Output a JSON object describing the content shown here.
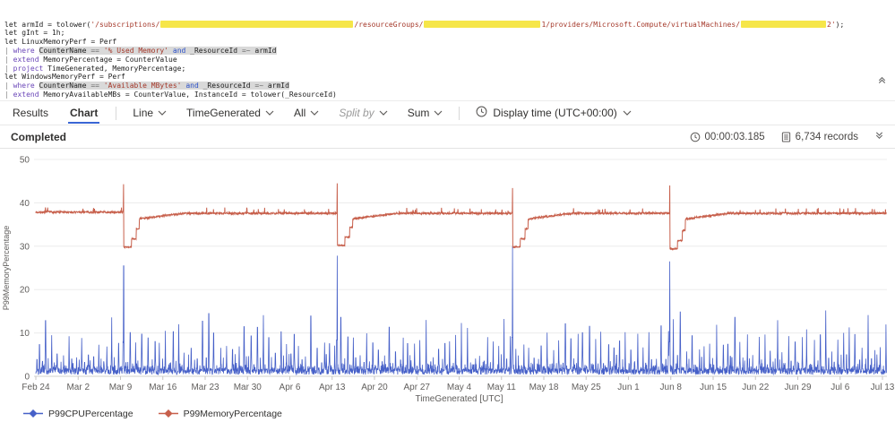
{
  "query_editor": {
    "lines": [
      [
        {
          "t": "let armId = tolower(",
          "c": "p"
        },
        {
          "t": "'/subscriptions/",
          "c": "s"
        },
        {
          "r": 215
        },
        {
          "t": "/resourceGroups/",
          "c": "s"
        },
        {
          "r": 130
        },
        {
          "t": "1/providers/Microsoft.Compute/virtualMachines/",
          "c": "s"
        },
        {
          "r": 95
        },
        {
          "t": "2'",
          "c": "s"
        },
        {
          "t": ");",
          "c": "p"
        }
      ],
      [
        {
          "t": "let gInt = 1h;",
          "c": "p"
        }
      ],
      [
        {
          "t": "let LinuxMemoryPerf = Perf",
          "c": "p"
        }
      ],
      [
        {
          "t": "| ",
          "c": "pi"
        },
        {
          "t": "where ",
          "c": "k"
        },
        {
          "t": "CounterName ",
          "c": "p",
          "h": 1
        },
        {
          "t": "== ",
          "c": "o",
          "h": 1
        },
        {
          "t": "'% Used Memory'",
          "c": "s",
          "h": 1
        },
        {
          "t": " ",
          "c": "p",
          "h": 1
        },
        {
          "t": "and",
          "c": "b",
          "h": 1
        },
        {
          "t": " _ResourceId ",
          "c": "p",
          "h": 1
        },
        {
          "t": "=~ ",
          "c": "o",
          "h": 1
        },
        {
          "t": "armId",
          "c": "p",
          "h": 1
        }
      ],
      [
        {
          "t": "| ",
          "c": "pi"
        },
        {
          "t": "extend ",
          "c": "k"
        },
        {
          "t": "MemoryPercentage = CounterValue",
          "c": "p"
        }
      ],
      [
        {
          "t": "| ",
          "c": "pi"
        },
        {
          "t": "project ",
          "c": "k"
        },
        {
          "t": "TimeGenerated, MemoryPercentage;",
          "c": "p"
        }
      ],
      [
        {
          "t": "let WindowsMemoryPerf = Perf",
          "c": "p"
        }
      ],
      [
        {
          "t": "| ",
          "c": "pi"
        },
        {
          "t": "where ",
          "c": "k"
        },
        {
          "t": "CounterName ",
          "c": "p",
          "h": 1
        },
        {
          "t": "== ",
          "c": "o",
          "h": 1
        },
        {
          "t": "'Available MBytes'",
          "c": "s",
          "h": 1
        },
        {
          "t": " ",
          "c": "p",
          "h": 1
        },
        {
          "t": "and",
          "c": "b",
          "h": 1
        },
        {
          "t": " _ResourceId ",
          "c": "p",
          "h": 1
        },
        {
          "t": "=~ ",
          "c": "o",
          "h": 1
        },
        {
          "t": "armId",
          "c": "p",
          "h": 1
        }
      ],
      [
        {
          "t": "| ",
          "c": "pi"
        },
        {
          "t": "extend ",
          "c": "k"
        },
        {
          "t": "MemoryAvailableMBs = CounterValue, InstanceId = tolower(_ResourceId)",
          "c": "p"
        }
      ],
      [
        {
          "t": "| ",
          "c": "pi"
        },
        {
          "t": "project ",
          "c": "k"
        },
        {
          "t": "TimeGenerated, MemoryAvailableMBs, InstanceId;",
          "c": "p"
        }
      ],
      [
        {
          "t": "let MemoryPerf = WindowsMemoryPerf",
          "c": "p"
        }
      ]
    ]
  },
  "toolbar": {
    "tabs": [
      {
        "label": "Results",
        "active": false
      },
      {
        "label": "Chart",
        "active": true
      }
    ],
    "dropdowns": [
      {
        "label": "Line",
        "muted": false
      },
      {
        "label": "TimeGenerated",
        "muted": false
      },
      {
        "label": "All",
        "muted": false
      },
      {
        "label": "Split by",
        "muted": true
      },
      {
        "label": "Sum",
        "muted": false
      }
    ],
    "display_time_label": "Display time (UTC+00:00)"
  },
  "statusbar": {
    "status": "Completed",
    "duration": "00:00:03.185",
    "records": "6,734 records"
  },
  "chart_data": {
    "type": "line",
    "title": "",
    "xlabel": "TimeGenerated [UTC]",
    "ylabel": "P99MemoryPercentage",
    "ylim": [
      0,
      50
    ],
    "yticks": [
      0,
      10,
      20,
      30,
      40,
      50
    ],
    "xticks": [
      "Feb 24",
      "Mar 2",
      "Mar 9",
      "Mar 16",
      "Mar 23",
      "Mar 30",
      "Apr 6",
      "Apr 13",
      "Apr 20",
      "Apr 27",
      "May 4",
      "May 11",
      "May 18",
      "May 25",
      "Jun 1",
      "Jun 8",
      "Jun 15",
      "Jun 22",
      "Jun 29",
      "Jul 6",
      "Jul 13"
    ],
    "x_span_days": 140,
    "grid": "horizontal",
    "legend_position": "bottom-left",
    "series": [
      {
        "name": "P99CPUPercentage",
        "color": "#4660c8",
        "baseline_range": [
          0.4,
          3.2
        ],
        "daily_spike_range": [
          4,
          10.5
        ],
        "occasional_spike_range": [
          11,
          14.5
        ],
        "event_spikes": [
          {
            "date": "Mar 10",
            "day": 14.5,
            "value": 25.5
          },
          {
            "date": "Apr 14",
            "day": 49.8,
            "value": 27.8
          },
          {
            "date": "May 13",
            "day": 78.8,
            "value": 30.0
          },
          {
            "date": "Jun 8",
            "day": 104.8,
            "value": 26.5
          }
        ]
      },
      {
        "name": "P99MemoryPercentage",
        "color": "#c75f4b",
        "baseline": 37.6,
        "baseline_before_first_event": 37.85,
        "events": [
          {
            "date": "Mar 10",
            "day": 14.5,
            "peak": 44.3,
            "dip": 29.8
          },
          {
            "date": "Apr 14",
            "day": 49.8,
            "peak": 44.5,
            "dip": 30.2
          },
          {
            "date": "May 13",
            "day": 78.8,
            "peak": 43.4,
            "dip": 29.8
          },
          {
            "date": "Jun 8",
            "day": 104.8,
            "peak": 44.0,
            "dip": 29.4
          }
        ],
        "recovery_days": 10
      }
    ]
  }
}
